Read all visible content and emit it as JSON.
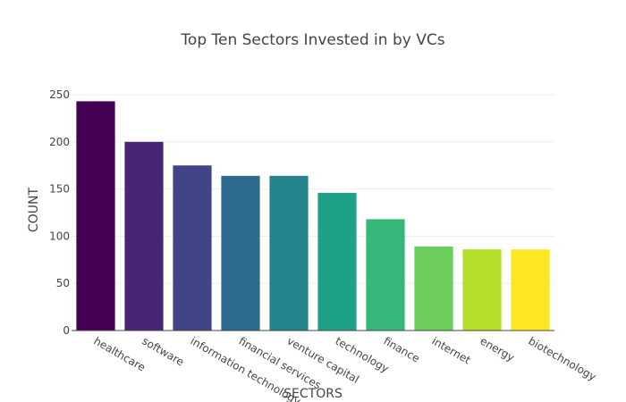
{
  "chart_data": {
    "type": "bar",
    "title": "Top Ten Sectors Invested in by VCs",
    "xlabel": "SECTORS",
    "ylabel": "COUNT",
    "categories": [
      "healthcare",
      "software",
      "information technology",
      "financial services",
      "venture capital",
      "technology",
      "finance",
      "internet",
      "energy",
      "biotechnology"
    ],
    "values": [
      243,
      200,
      175,
      164,
      164,
      146,
      118,
      89,
      86,
      86
    ],
    "colors": [
      "#440154",
      "#482475",
      "#414487",
      "#2e6b8e",
      "#25838e",
      "#1fa187",
      "#35b779",
      "#6ccd5a",
      "#b5de2b",
      "#fde725"
    ],
    "ylim": [
      0,
      250
    ],
    "yticks": [
      0,
      50,
      100,
      150,
      200,
      250
    ],
    "grid": true,
    "legend": "none"
  }
}
